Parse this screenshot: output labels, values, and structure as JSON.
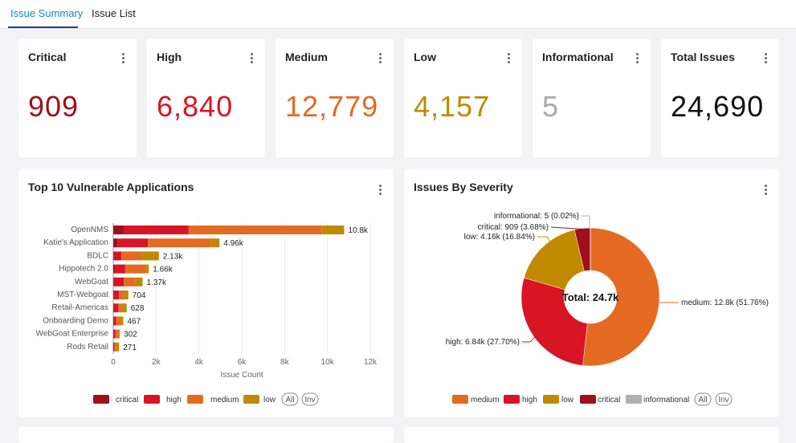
{
  "tabs": [
    {
      "label": "Issue Summary",
      "active": true
    },
    {
      "label": "Issue List",
      "active": false
    }
  ],
  "cards": [
    {
      "title": "Critical",
      "value": "909",
      "color": "#a00f1b"
    },
    {
      "title": "High",
      "value": "6,840",
      "color": "#d81525"
    },
    {
      "title": "Medium",
      "value": "12,779",
      "color": "#e56a21"
    },
    {
      "title": "Low",
      "value": "4,157",
      "color": "#c08a00"
    },
    {
      "title": "Informational",
      "value": "5",
      "color": "#aaaaaa"
    },
    {
      "title": "Total Issues",
      "value": "24,690",
      "color": "#111111"
    }
  ],
  "colors": {
    "critical": "#a00f1b",
    "high": "#d81525",
    "medium": "#e56a21",
    "low": "#c08a00",
    "informational": "#b0b0b0"
  },
  "legend_buttons": {
    "all": "All",
    "inv": "Inv"
  },
  "chart_data": [
    {
      "type": "bar",
      "orientation": "horizontal",
      "stacked": true,
      "title": "Top 10 Vulnerable Applications",
      "xlabel": "Issue Count",
      "xlim": [
        0,
        12000
      ],
      "xticks": [
        "0",
        "2k",
        "4k",
        "6k",
        "8k",
        "10k",
        "12k"
      ],
      "categories": [
        "OpenNMS",
        "Katie's Application",
        "BDLC",
        "Hippotech 2.0",
        "WebGoat",
        "MST-Webgoat",
        "Retail-Americas",
        "Onboarding Demo",
        "WebGoat Enterprise",
        "Rods Retail"
      ],
      "totals_labels": [
        "10.8k",
        "4.96k",
        "2.13k",
        "1.66k",
        "1.37k",
        "704",
        "628",
        "467",
        "302",
        "271"
      ],
      "series": [
        {
          "name": "critical",
          "values": [
            520,
            200,
            0,
            80,
            0,
            0,
            0,
            0,
            0,
            0
          ]
        },
        {
          "name": "high",
          "values": [
            3000,
            1420,
            380,
            480,
            490,
            270,
            240,
            130,
            100,
            60
          ]
        },
        {
          "name": "medium",
          "values": [
            6220,
            2900,
            950,
            940,
            540,
            250,
            140,
            170,
            150,
            50
          ]
        },
        {
          "name": "low",
          "values": [
            1040,
            440,
            800,
            160,
            340,
            184,
            248,
            167,
            52,
            161
          ]
        }
      ],
      "legend": "bottom"
    },
    {
      "type": "pie",
      "donut": true,
      "title": "Issues By Severity",
      "center_label": "Total: 24.7k",
      "slices": [
        {
          "name": "medium",
          "value": 12779,
          "label": "medium: 12.8k (51.76%)"
        },
        {
          "name": "high",
          "value": 6840,
          "label": "high: 6.84k (27.70%)"
        },
        {
          "name": "low",
          "value": 4157,
          "label": "low: 4.16k (16.84%)"
        },
        {
          "name": "critical",
          "value": 909,
          "label": "critical: 909 (3.68%)"
        },
        {
          "name": "informational",
          "value": 5,
          "label": "informational: 5 (0.02%)"
        }
      ],
      "legend": "bottom"
    }
  ]
}
